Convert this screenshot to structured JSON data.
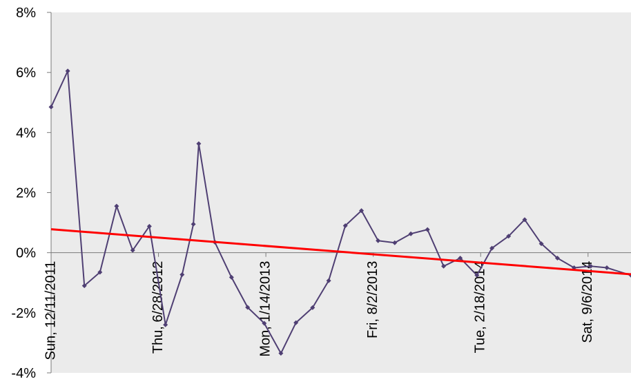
{
  "chart_data": {
    "type": "line",
    "title": "",
    "xlabel": "",
    "ylabel": "",
    "ylim": [
      -4,
      8
    ],
    "yticks": [
      "8%",
      "6%",
      "4%",
      "2%",
      "0%",
      "-2%",
      "-4%"
    ],
    "ytick_values": [
      8,
      6,
      4,
      2,
      0,
      -2,
      -4
    ],
    "xticks": [
      {
        "label": "Sun, 12/11/2011",
        "date": "2011-12-11"
      },
      {
        "label": "Thu, 6/28/2012",
        "date": "2012-06-28"
      },
      {
        "label": "Mon, 1/14/2013",
        "date": "2013-01-14"
      },
      {
        "label": "Fri, 8/2/2013",
        "date": "2013-08-02"
      },
      {
        "label": "Tue, 2/18/2014",
        "date": "2014-02-18"
      },
      {
        "label": "Sat, 9/6/2014",
        "date": "2014-09-06"
      }
    ],
    "xlim": [
      "2011-12-11",
      "2014-11-25"
    ],
    "grid": false,
    "legend": "none",
    "plot_background": "#ebebeb",
    "series": [
      {
        "color": "#4f3f73",
        "marker": "diamond",
        "x": [
          "2011-12-11",
          "2012-01-11",
          "2012-02-11",
          "2012-03-11",
          "2012-04-11",
          "2012-05-11",
          "2012-06-11",
          "2012-07-11",
          "2012-08-11",
          "2012-09-01",
          "2012-09-11",
          "2012-10-11",
          "2012-11-11",
          "2012-12-11",
          "2013-01-11",
          "2013-02-11",
          "2013-03-11",
          "2013-04-11",
          "2013-05-11",
          "2013-06-11",
          "2013-07-11",
          "2013-08-11",
          "2013-09-11",
          "2013-10-11",
          "2013-11-11",
          "2013-12-11",
          "2014-01-11",
          "2014-02-11",
          "2014-03-11",
          "2014-04-11",
          "2014-05-11",
          "2014-06-11",
          "2014-07-11",
          "2014-08-11",
          "2014-09-11",
          "2014-10-11",
          "2014-11-25"
        ],
        "values": [
          4.85,
          6.05,
          -1.1,
          -0.65,
          1.55,
          0.08,
          0.88,
          -2.4,
          -0.73,
          0.95,
          3.63,
          0.35,
          -0.82,
          -1.82,
          -2.35,
          -3.35,
          -2.33,
          -1.83,
          -0.93,
          0.9,
          1.4,
          0.4,
          0.33,
          0.63,
          0.77,
          -0.45,
          -0.18,
          -0.75,
          0.15,
          0.55,
          1.1,
          0.3,
          -0.18,
          -0.5,
          -0.45,
          -0.5,
          -0.75
        ]
      }
    ],
    "trendline": {
      "color": "#ff0000",
      "x": [
        "2011-12-11",
        "2014-11-25"
      ],
      "values": [
        0.78,
        -0.72
      ]
    }
  }
}
